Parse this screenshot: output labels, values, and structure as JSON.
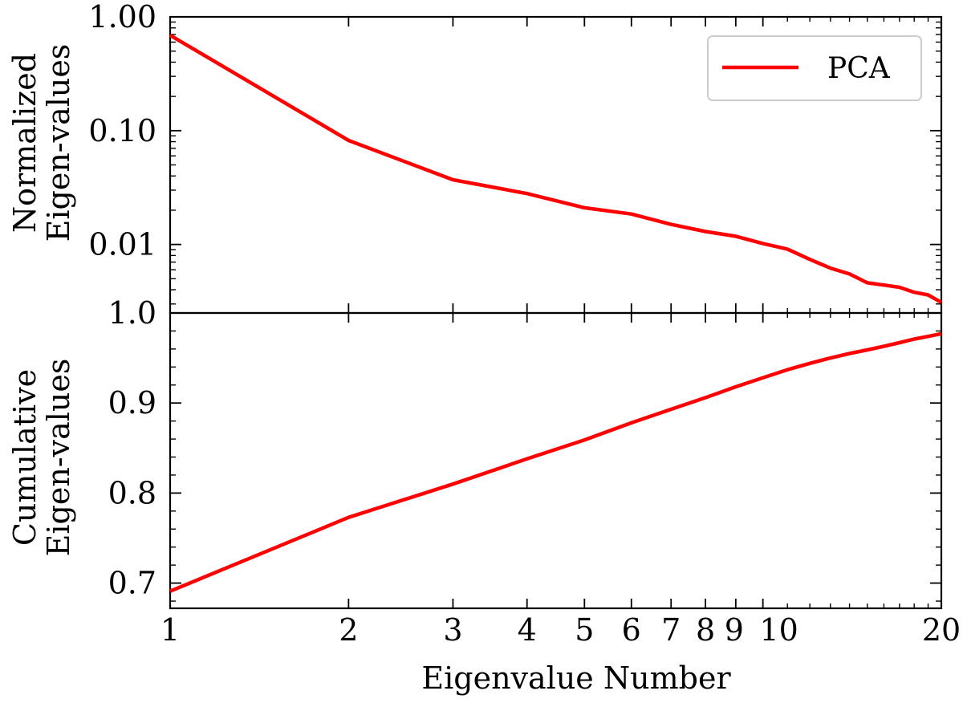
{
  "chart_data": [
    {
      "type": "line",
      "panel": "top",
      "xscale": "log",
      "yscale": "log",
      "ylabel_lines": [
        "Normalized",
        "Eigen-values"
      ],
      "xlim": [
        1,
        20
      ],
      "ylim": [
        0.0025,
        1.0
      ],
      "y_tick_values": [
        1.0,
        0.1,
        0.01
      ],
      "y_tick_labels": [
        "1.00",
        "0.10",
        "0.01"
      ],
      "grid": false,
      "legend": {
        "placement": "top-right",
        "entries": [
          "PCA"
        ]
      },
      "series": [
        {
          "name": "PCA",
          "color": "#ff0000",
          "x": [
            1,
            2,
            3,
            4,
            5,
            6,
            7,
            8,
            9,
            10,
            11,
            12,
            13,
            14,
            15,
            16,
            17,
            18,
            19,
            20
          ],
          "y": [
            0.69,
            0.082,
            0.037,
            0.028,
            0.021,
            0.0185,
            0.015,
            0.013,
            0.0118,
            0.0102,
            0.0091,
            0.0074,
            0.0062,
            0.0055,
            0.0046,
            0.0044,
            0.0042,
            0.0038,
            0.0036,
            0.0031
          ]
        }
      ]
    },
    {
      "type": "line",
      "panel": "bottom",
      "xscale": "log",
      "yscale": "linear",
      "xlabel": "Eigenvalue Number",
      "ylabel_lines": [
        "Cumulative",
        "Eigen-values"
      ],
      "xlim": [
        1,
        20
      ],
      "ylim": [
        0.672,
        1.0
      ],
      "x_tick_values": [
        1,
        2,
        3,
        4,
        5,
        6,
        7,
        8,
        9,
        10,
        20
      ],
      "x_tick_labels": [
        "1",
        "2",
        "3",
        "4",
        "5",
        "6",
        "7",
        "8",
        "9",
        "10",
        "20"
      ],
      "y_tick_values": [
        1.0,
        0.9,
        0.8,
        0.7
      ],
      "y_tick_labels": [
        "1.0",
        "0.9",
        "0.8",
        "0.7"
      ],
      "grid": false,
      "series": [
        {
          "name": "PCA",
          "color": "#ff0000",
          "x": [
            1,
            2,
            3,
            4,
            5,
            6,
            7,
            8,
            9,
            10,
            11,
            12,
            13,
            14,
            15,
            16,
            17,
            18,
            19,
            20
          ],
          "y": [
            0.691,
            0.773,
            0.81,
            0.838,
            0.859,
            0.878,
            0.893,
            0.906,
            0.918,
            0.928,
            0.937,
            0.944,
            0.95,
            0.955,
            0.959,
            0.963,
            0.967,
            0.971,
            0.974,
            0.977
          ]
        }
      ]
    }
  ]
}
